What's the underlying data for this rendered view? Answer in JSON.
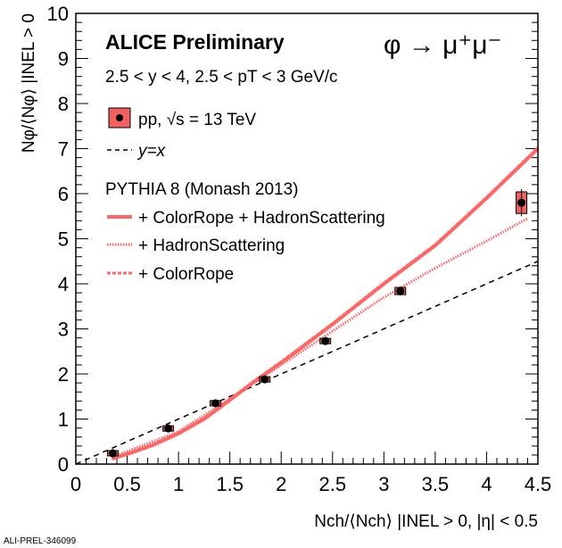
{
  "chart_data": {
    "type": "scatter",
    "title": "ALICE Preliminary",
    "process": "φ → μ⁺μ⁻",
    "subtitle": "2.5 < y < 4, 2.5 < pT < 3 GeV/c",
    "xlabel": "Nch/⟨Nch⟩ |INEL > 0, |η| < 0.5",
    "ylabel": "Nφ/⟨Nφ⟩ |INEL > 0",
    "xlim": [
      0,
      4.5
    ],
    "ylim": [
      0,
      10
    ],
    "xticks": [
      "0",
      "0.5",
      "1",
      "1.5",
      "2",
      "2.5",
      "3",
      "3.5",
      "4",
      "4.5"
    ],
    "yticks": [
      "0",
      "1",
      "2",
      "3",
      "4",
      "5",
      "6",
      "7",
      "8",
      "9",
      "10"
    ],
    "legend": {
      "data": "pp, √s = 13 TeV",
      "diag": "y=x",
      "model": "PYTHIA 8 (Monash 2013)",
      "s1": "+ ColorRope + HadronScattering",
      "s2": "+ HadronScattering",
      "s3": "+ ColorRope"
    },
    "data_points": {
      "x": [
        0.36,
        0.9,
        1.36,
        1.84,
        2.43,
        3.16,
        4.34
      ],
      "y": [
        0.24,
        0.79,
        1.35,
        1.88,
        2.73,
        3.84,
        5.8
      ],
      "yerr": [
        0.05,
        0.05,
        0.05,
        0.05,
        0.06,
        0.1,
        0.3
      ]
    },
    "series": [
      {
        "name": "+ ColorRope + HadronScattering",
        "color": "#ff6666",
        "style": "solid",
        "x": [
          0.35,
          0.5,
          0.75,
          1,
          1.25,
          1.5,
          1.75,
          2,
          2.5,
          3,
          3.5,
          4,
          4.5
        ],
        "y": [
          0.12,
          0.22,
          0.42,
          0.68,
          1.0,
          1.42,
          1.85,
          2.25,
          3.1,
          4.0,
          4.85,
          5.9,
          7.0
        ]
      },
      {
        "name": "+ HadronScattering",
        "color": "#ff6666",
        "style": "dotted",
        "x": [
          0.35,
          1,
          1.5,
          2,
          2.5,
          3,
          3.5,
          4,
          4.4
        ],
        "y": [
          0.15,
          0.72,
          1.45,
          2.2,
          2.95,
          3.7,
          4.35,
          4.95,
          5.45
        ]
      },
      {
        "name": "+ ColorRope",
        "color": "#ff6666",
        "style": "dashed",
        "x": [
          0.35,
          0.5,
          0.75,
          1,
          1.25,
          1.5,
          1.75,
          2,
          2.5,
          3,
          3.5,
          4,
          4.5
        ],
        "y": [
          0.14,
          0.24,
          0.44,
          0.7,
          1.02,
          1.44,
          1.87,
          2.27,
          3.12,
          4.02,
          4.87,
          5.92,
          7.02
        ]
      }
    ]
  },
  "footer": "ALI-PREL-346099"
}
